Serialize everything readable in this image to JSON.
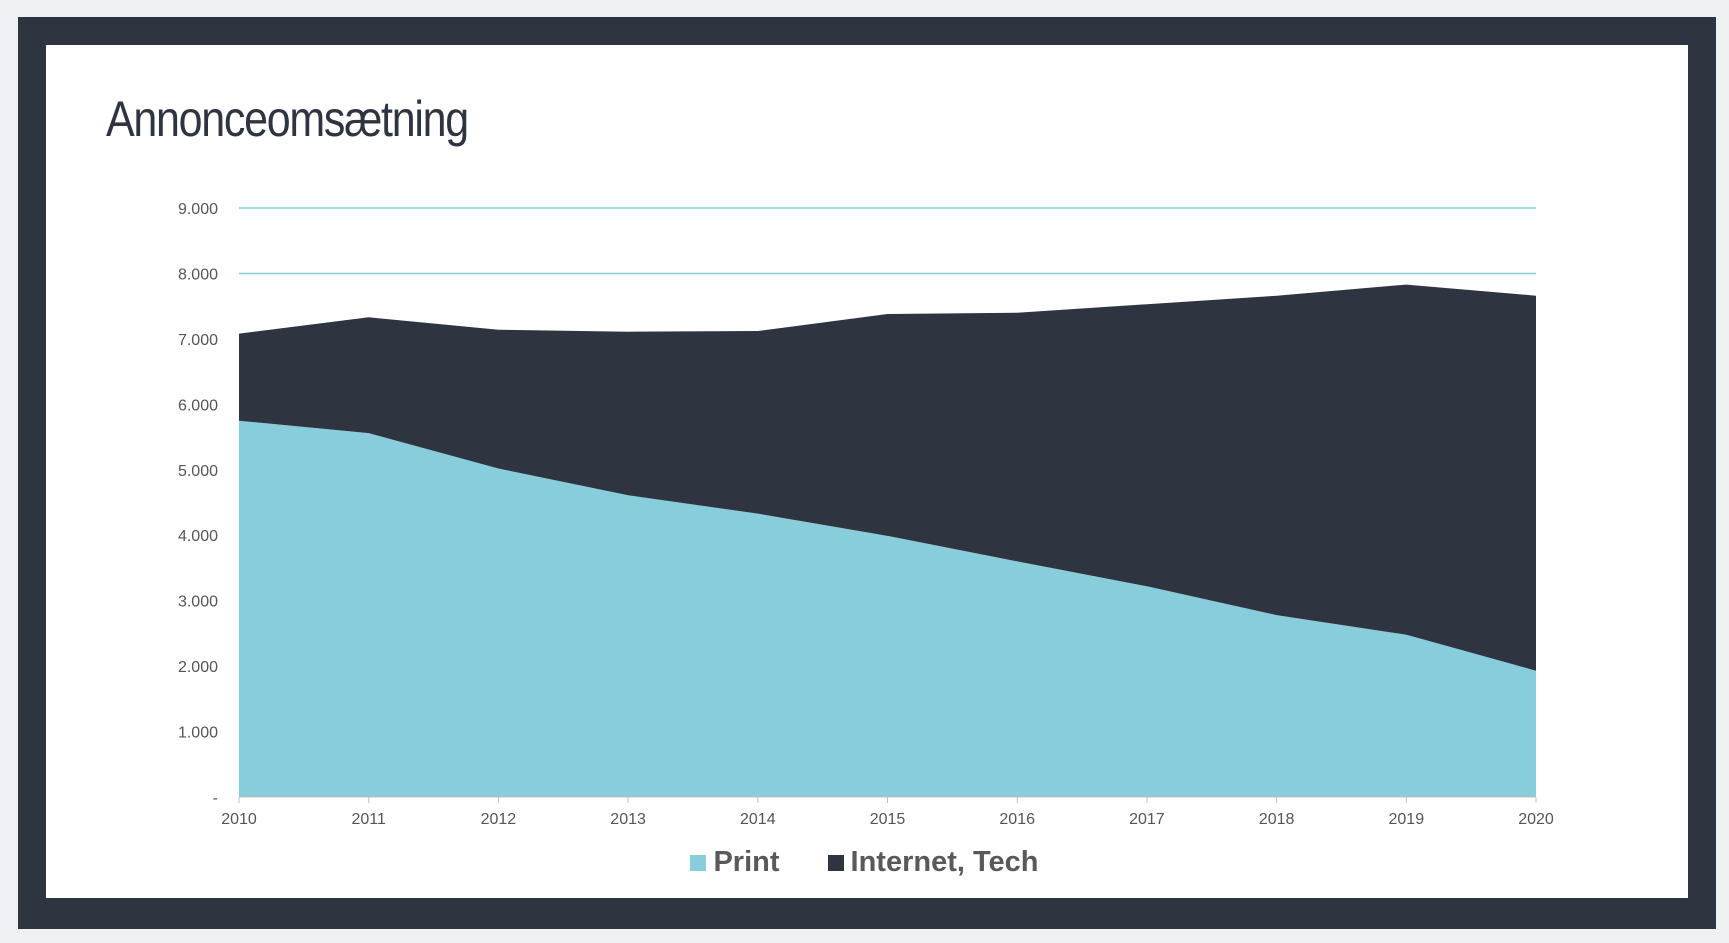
{
  "chart_data": {
    "type": "area",
    "stacked": true,
    "title": "Annonceomsætning",
    "x": [
      "2010",
      "2011",
      "2012",
      "2013",
      "2014",
      "2015",
      "2016",
      "2017",
      "2018",
      "2019",
      "2020"
    ],
    "series": [
      {
        "name": "Print",
        "color": "#87cddb",
        "values": [
          5750,
          5560,
          5020,
          4610,
          4330,
          3990,
          3600,
          3220,
          2780,
          2480,
          1930
        ]
      },
      {
        "name": "Internet, Tech",
        "color": "#2e3541",
        "values": [
          1330,
          1770,
          2120,
          2500,
          2790,
          3390,
          3800,
          4310,
          4880,
          5350,
          5730
        ]
      }
    ],
    "y_ticks": [
      "-",
      "1.000",
      "2.000",
      "3.000",
      "4.000",
      "5.000",
      "6.000",
      "7.000",
      "8.000",
      "9.000"
    ],
    "ylim": [
      0,
      9000
    ],
    "xlabel": "",
    "ylabel": "",
    "grid": true,
    "grid_color": "#87cddb",
    "legend_position": "bottom"
  },
  "colors": {
    "frame": "#2e3541",
    "background": "#ffffff",
    "axis_text": "#555555"
  }
}
